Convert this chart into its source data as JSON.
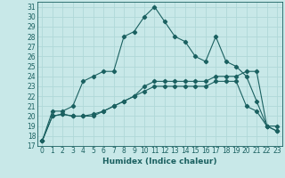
{
  "xlabel": "Humidex (Indice chaleur)",
  "bg_color": "#c8e8e8",
  "grid_color": "#b0d8d8",
  "line_color": "#1a6060",
  "xlim": [
    -0.5,
    23.5
  ],
  "ylim": [
    17,
    31.5
  ],
  "yticks": [
    17,
    18,
    19,
    20,
    21,
    22,
    23,
    24,
    25,
    26,
    27,
    28,
    29,
    30,
    31
  ],
  "xticks": [
    0,
    1,
    2,
    3,
    4,
    5,
    6,
    7,
    8,
    9,
    10,
    11,
    12,
    13,
    14,
    15,
    16,
    17,
    18,
    19,
    20,
    21,
    22,
    23
  ],
  "line1_x": [
    0,
    1,
    2,
    3,
    4,
    5,
    6,
    7,
    8,
    9,
    10,
    11,
    12,
    13,
    14,
    15,
    16,
    17,
    18,
    19,
    20,
    21,
    22,
    23
  ],
  "line1_y": [
    17.5,
    20.5,
    20.5,
    21.0,
    23.5,
    24.0,
    24.5,
    24.5,
    28.0,
    28.5,
    30.0,
    31.0,
    29.5,
    28.0,
    27.5,
    26.0,
    25.5,
    28.0,
    25.5,
    25.0,
    24.0,
    21.5,
    19.0,
    19.0
  ],
  "line2_x": [
    0,
    1,
    2,
    3,
    4,
    5,
    6,
    7,
    8,
    9,
    10,
    11,
    12,
    13,
    14,
    15,
    16,
    17,
    18,
    19,
    20,
    21,
    22,
    23
  ],
  "line2_y": [
    17.5,
    20.0,
    20.2,
    20.0,
    20.0,
    20.2,
    20.5,
    21.0,
    21.5,
    22.0,
    22.5,
    23.0,
    23.0,
    23.0,
    23.0,
    23.0,
    23.0,
    23.5,
    23.5,
    23.5,
    21.0,
    20.5,
    19.0,
    18.5
  ],
  "line3_x": [
    0,
    1,
    2,
    3,
    4,
    5,
    6,
    7,
    8,
    9,
    10,
    11,
    12,
    13,
    14,
    15,
    16,
    17,
    18,
    19,
    20,
    21,
    22,
    23
  ],
  "line3_y": [
    17.5,
    20.0,
    20.2,
    20.0,
    20.0,
    20.0,
    20.5,
    21.0,
    21.5,
    22.0,
    23.0,
    23.5,
    23.5,
    23.5,
    23.5,
    23.5,
    23.5,
    24.0,
    24.0,
    24.0,
    24.5,
    24.5,
    19.0,
    18.5
  ],
  "marker_style": "D",
  "marker_size": 2.2,
  "tick_fontsize": 5.5,
  "xlabel_fontsize": 6.5
}
